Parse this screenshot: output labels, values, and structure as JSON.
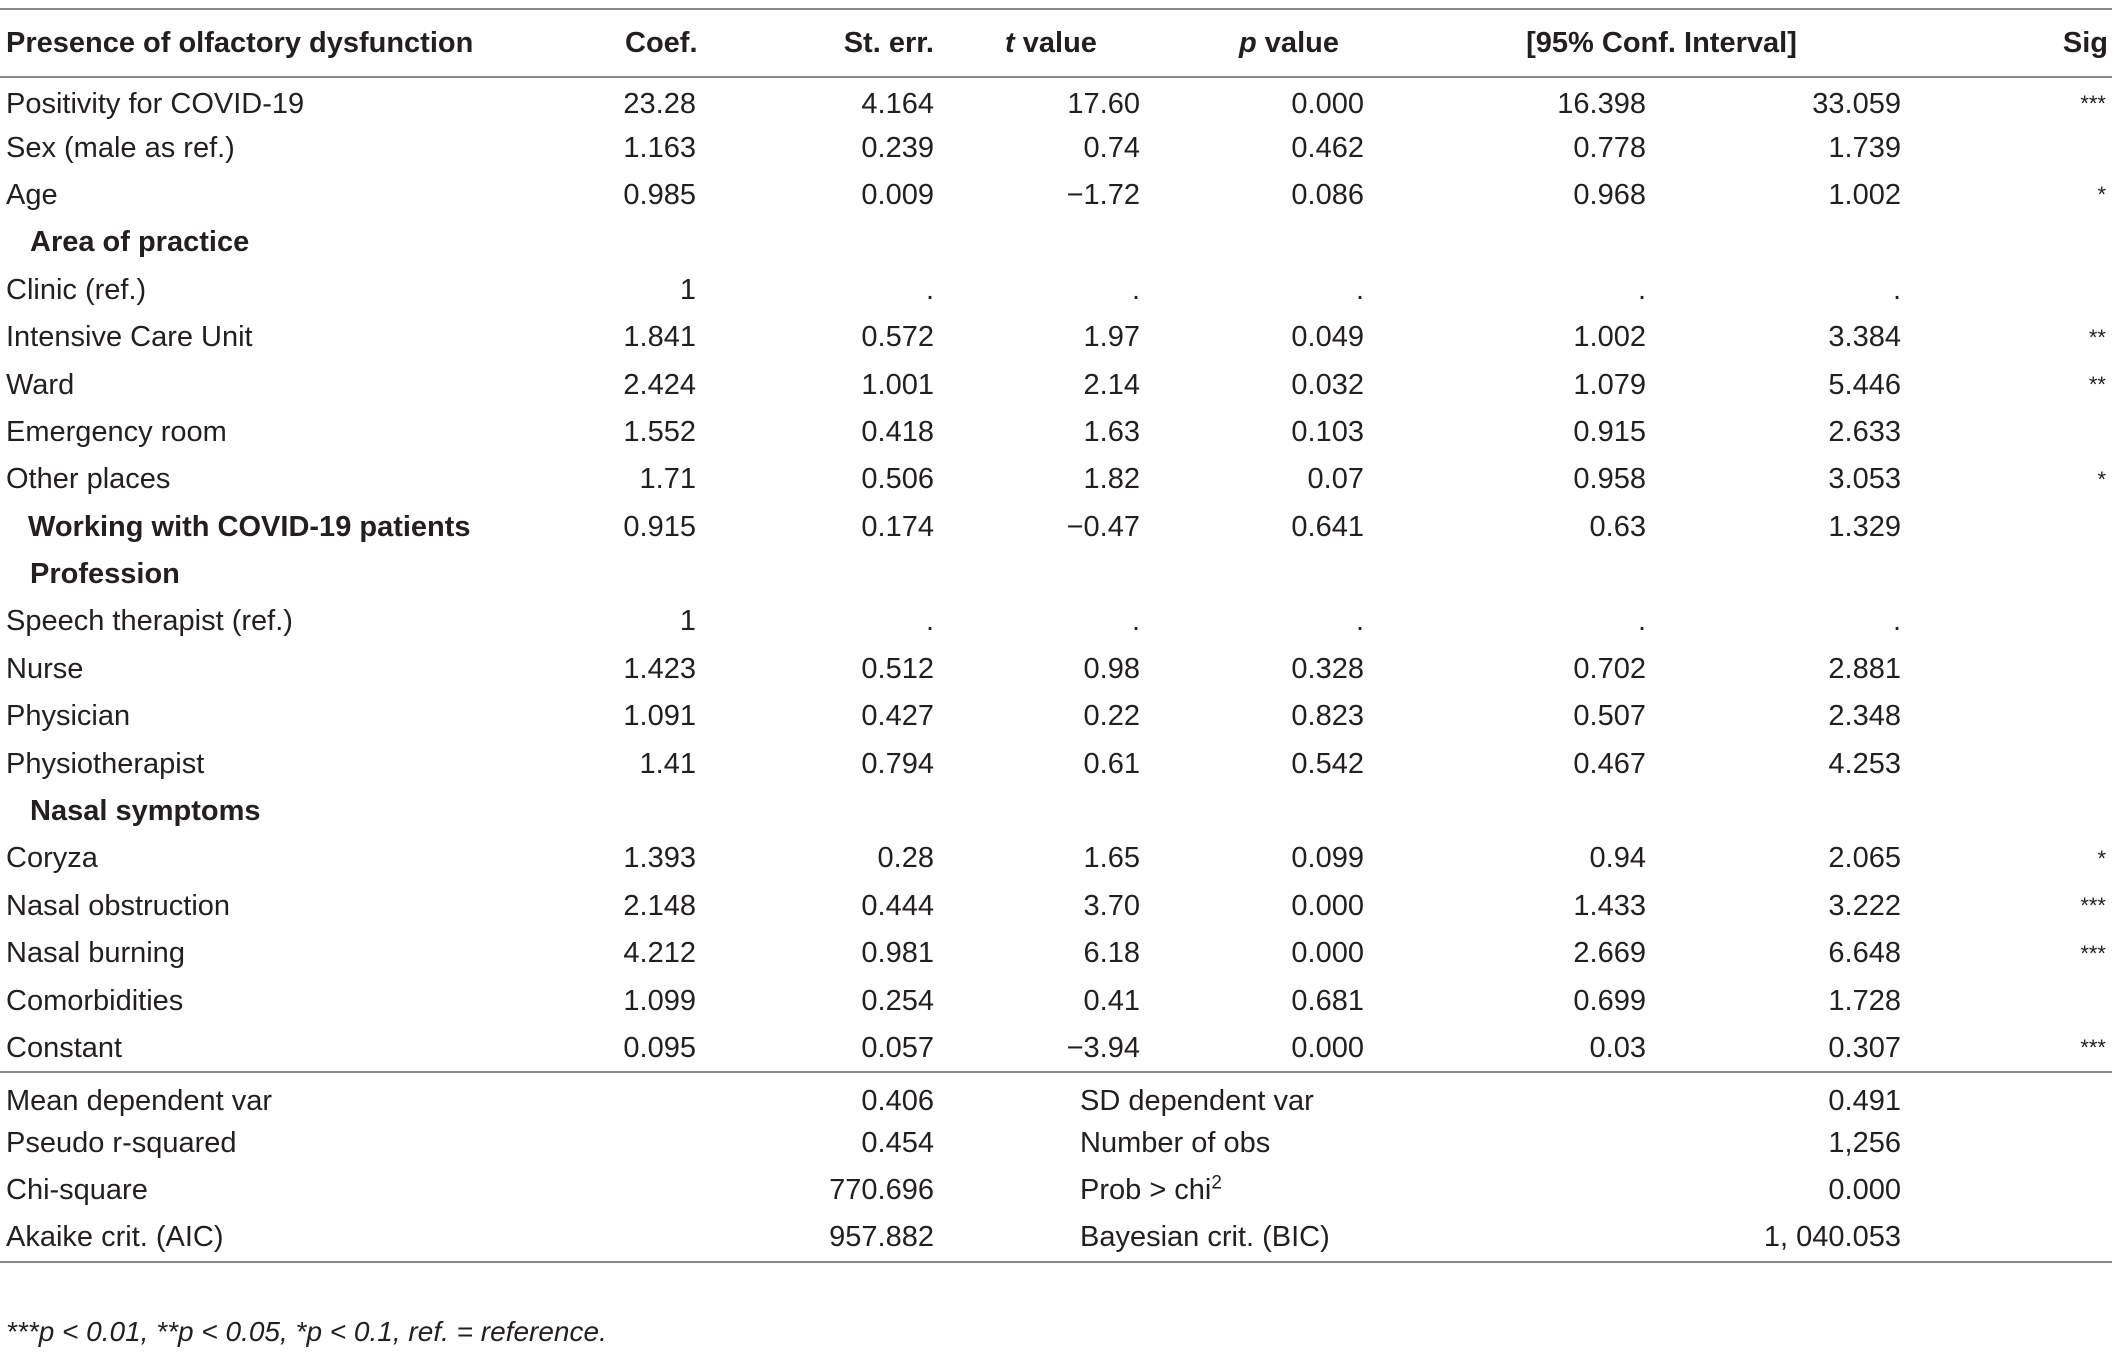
{
  "header": {
    "col0": "Presence of olfactory dysfunction",
    "col1": "Coef.",
    "col2": "St. err.",
    "col3_italic": "t",
    "col3_rest": " value",
    "col4_italic": "p",
    "col4_rest": " value",
    "col5": "[95% Conf. Interval]",
    "col7": "Sig"
  },
  "rows": [
    {
      "label": "Positivity for COVID-19",
      "coef": "23.28",
      "se": "4.164",
      "t": "17.60",
      "p": "0.000",
      "lo": "16.398",
      "hi": "33.059",
      "sig": "***"
    },
    {
      "label": "Sex (male as ref.)",
      "coef": "1.163",
      "se": "0.239",
      "t": "0.74",
      "p": "0.462",
      "lo": "0.778",
      "hi": "1.739",
      "sig": ""
    },
    {
      "label": "Age",
      "coef": "0.985",
      "se": "0.009",
      "t": "−1.72",
      "p": "0.086",
      "lo": "0.968",
      "hi": "1.002",
      "sig": "*"
    },
    {
      "group": "Area of practice"
    },
    {
      "label": "Clinic (ref.)",
      "coef": "1",
      "se": ".",
      "t": ".",
      "p": ".",
      "lo": ".",
      "hi": ".",
      "sig": ""
    },
    {
      "label": "Intensive Care Unit",
      "coef": "1.841",
      "se": "0.572",
      "t": "1.97",
      "p": "0.049",
      "lo": "1.002",
      "hi": "3.384",
      "sig": "**"
    },
    {
      "label": "Ward",
      "coef": "2.424",
      "se": "1.001",
      "t": "2.14",
      "p": "0.032",
      "lo": "1.079",
      "hi": "5.446",
      "sig": "**"
    },
    {
      "label": "Emergency room",
      "coef": "1.552",
      "se": "0.418",
      "t": "1.63",
      "p": "0.103",
      "lo": "0.915",
      "hi": "2.633",
      "sig": ""
    },
    {
      "label": "Other places",
      "coef": "1.71",
      "se": "0.506",
      "t": "1.82",
      "p": "0.07",
      "lo": "0.958",
      "hi": "3.053",
      "sig": "*"
    },
    {
      "boldlabel": "Working with COVID-19 patients",
      "coef": "0.915",
      "se": "0.174",
      "t": "−0.47",
      "p": "0.641",
      "lo": "0.63",
      "hi": "1.329",
      "sig": ""
    },
    {
      "group": "Profession"
    },
    {
      "label": "Speech therapist (ref.)",
      "coef": "1",
      "se": ".",
      "t": ".",
      "p": ".",
      "lo": ".",
      "hi": ".",
      "sig": ""
    },
    {
      "label": "Nurse",
      "coef": "1.423",
      "se": "0.512",
      "t": "0.98",
      "p": "0.328",
      "lo": "0.702",
      "hi": "2.881",
      "sig": ""
    },
    {
      "label": "Physician",
      "coef": "1.091",
      "se": "0.427",
      "t": "0.22",
      "p": "0.823",
      "lo": "0.507",
      "hi": "2.348",
      "sig": ""
    },
    {
      "label": "Physiotherapist",
      "coef": "1.41",
      "se": "0.794",
      "t": "0.61",
      "p": "0.542",
      "lo": "0.467",
      "hi": "4.253",
      "sig": ""
    },
    {
      "group": "Nasal symptoms"
    },
    {
      "label": "Coryza",
      "coef": "1.393",
      "se": "0.28",
      "t": "1.65",
      "p": "0.099",
      "lo": "0.94",
      "hi": "2.065",
      "sig": "*"
    },
    {
      "label": "Nasal obstruction",
      "coef": "2.148",
      "se": "0.444",
      "t": "3.70",
      "p": "0.000",
      "lo": "1.433",
      "hi": "3.222",
      "sig": "***"
    },
    {
      "label": "Nasal burning",
      "coef": "4.212",
      "se": "0.981",
      "t": "6.18",
      "p": "0.000",
      "lo": "2.669",
      "hi": "6.648",
      "sig": "***"
    },
    {
      "label": "Comorbidities",
      "coef": "1.099",
      "se": "0.254",
      "t": "0.41",
      "p": "0.681",
      "lo": "0.699",
      "hi": "1.728",
      "sig": ""
    },
    {
      "label": "Constant",
      "coef": "0.095",
      "se": "0.057",
      "t": "−3.94",
      "p": "0.000",
      "lo": "0.03",
      "hi": "0.307",
      "sig": "***"
    }
  ],
  "stats": [
    {
      "l1": "Mean dependent var",
      "v1": "0.406",
      "l2": "SD dependent var",
      "v2": "0.491"
    },
    {
      "l1": "Pseudo r-squared",
      "v1": "0.454",
      "l2": "Number of obs",
      "v2": "1,256"
    },
    {
      "l1": "Chi-square",
      "v1": "770.696",
      "l2": "Prob > chi",
      "l2sup": "2",
      "v2": "0.000"
    },
    {
      "l1": "Akaike crit. (AIC)",
      "v1": "957.882",
      "l2": "Bayesian crit. (BIC)",
      "v2": "1, 040.053"
    }
  ],
  "footnote": "***p < 0.01, **p < 0.05, *p < 0.1, ref. = reference."
}
